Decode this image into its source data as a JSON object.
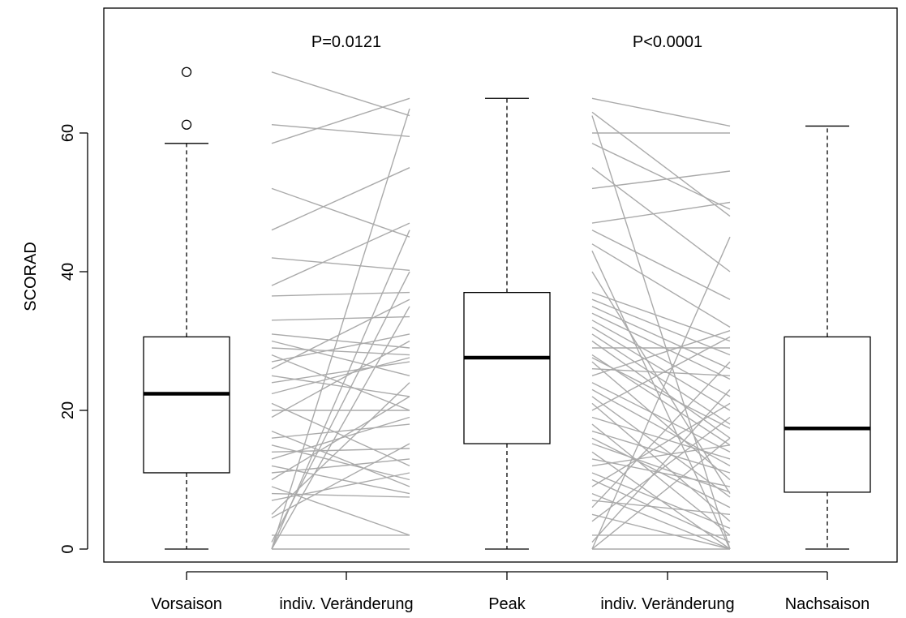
{
  "chart_data": {
    "type": "boxplot",
    "ylabel": "SCORAD",
    "ylim": [
      -3,
      78
    ],
    "yticks": [
      0,
      20,
      40,
      60
    ],
    "grid": false,
    "categories": [
      "Vorsaison",
      "indiv. Veränderung",
      "Peak",
      "indiv. Veränderung",
      "Nachsaison"
    ],
    "boxes": [
      {
        "category": "Vorsaison",
        "min": 0,
        "q1": 11,
        "median": 22.4,
        "q3": 30.6,
        "max": 58.5,
        "outliers": [
          61.2,
          68.8
        ]
      },
      {
        "category": "Peak",
        "min": 0,
        "q1": 15.2,
        "median": 27.6,
        "q3": 37,
        "max": 65,
        "outliers": []
      },
      {
        "category": "Nachsaison",
        "min": 0,
        "q1": 8.2,
        "median": 17.4,
        "q3": 30.6,
        "max": 61,
        "outliers": []
      }
    ],
    "annotations": [
      {
        "text": "P=0.0121",
        "between": [
          "Vorsaison",
          "Peak"
        ]
      },
      {
        "text": "P<0.0001",
        "between": [
          "Peak",
          "Nachsaison"
        ]
      }
    ],
    "paired_lines_color": "#aaaaaa",
    "paired_lines": [
      {
        "between": [
          "Vorsaison",
          "Peak"
        ],
        "pairs": [
          [
            68.8,
            62.5
          ],
          [
            61.2,
            59.5
          ],
          [
            58.5,
            65
          ],
          [
            52,
            45
          ],
          [
            46,
            55
          ],
          [
            42,
            40.2
          ],
          [
            38,
            47
          ],
          [
            36.5,
            37
          ],
          [
            33,
            33.5
          ],
          [
            31,
            29
          ],
          [
            30,
            25
          ],
          [
            29,
            28
          ],
          [
            28,
            20
          ],
          [
            27,
            31
          ],
          [
            26,
            36
          ],
          [
            25,
            22
          ],
          [
            24,
            27
          ],
          [
            22.4,
            27.6
          ],
          [
            21,
            12
          ],
          [
            20,
            20
          ],
          [
            19,
            30
          ],
          [
            17,
            9
          ],
          [
            16,
            18
          ],
          [
            15,
            10
          ],
          [
            14,
            14.5
          ],
          [
            13,
            19
          ],
          [
            12,
            8
          ],
          [
            11,
            13
          ],
          [
            10,
            22
          ],
          [
            9,
            2
          ],
          [
            8,
            7.5
          ],
          [
            7,
            11
          ],
          [
            5,
            24
          ],
          [
            4.5,
            15.2
          ],
          [
            2,
            2
          ],
          [
            1,
            40
          ],
          [
            0,
            46
          ],
          [
            0,
            0
          ],
          [
            0,
            63.5
          ],
          [
            0,
            35
          ]
        ]
      },
      {
        "between": [
          "Peak",
          "Nachsaison"
        ],
        "pairs": [
          [
            65,
            61
          ],
          [
            63,
            48
          ],
          [
            62.5,
            0
          ],
          [
            60,
            60
          ],
          [
            58.5,
            49
          ],
          [
            55,
            40
          ],
          [
            52,
            54.5
          ],
          [
            47,
            50
          ],
          [
            46,
            36
          ],
          [
            44,
            32
          ],
          [
            43,
            0
          ],
          [
            40,
            8
          ],
          [
            37,
            30
          ],
          [
            36,
            28
          ],
          [
            35,
            26
          ],
          [
            34,
            24.5
          ],
          [
            33,
            22
          ],
          [
            32,
            20
          ],
          [
            31,
            18
          ],
          [
            30,
            16
          ],
          [
            29,
            29
          ],
          [
            28,
            15
          ],
          [
            27.6,
            17.4
          ],
          [
            27,
            10
          ],
          [
            26,
            25
          ],
          [
            25,
            31.5
          ],
          [
            24,
            14
          ],
          [
            23,
            12
          ],
          [
            22,
            7.5
          ],
          [
            21,
            4
          ],
          [
            20,
            30.6
          ],
          [
            19,
            13
          ],
          [
            18,
            2
          ],
          [
            17,
            11
          ],
          [
            16,
            6
          ],
          [
            15.2,
            8.2
          ],
          [
            14,
            0
          ],
          [
            13,
            9
          ],
          [
            12,
            15
          ],
          [
            11,
            3
          ],
          [
            10,
            1
          ],
          [
            9,
            21
          ],
          [
            8,
            0
          ],
          [
            7,
            5
          ],
          [
            6,
            27
          ],
          [
            5,
            0
          ],
          [
            4,
            19
          ],
          [
            2,
            2
          ],
          [
            1,
            23
          ],
          [
            0,
            45
          ],
          [
            0,
            0
          ],
          [
            0,
            16
          ]
        ]
      }
    ]
  }
}
